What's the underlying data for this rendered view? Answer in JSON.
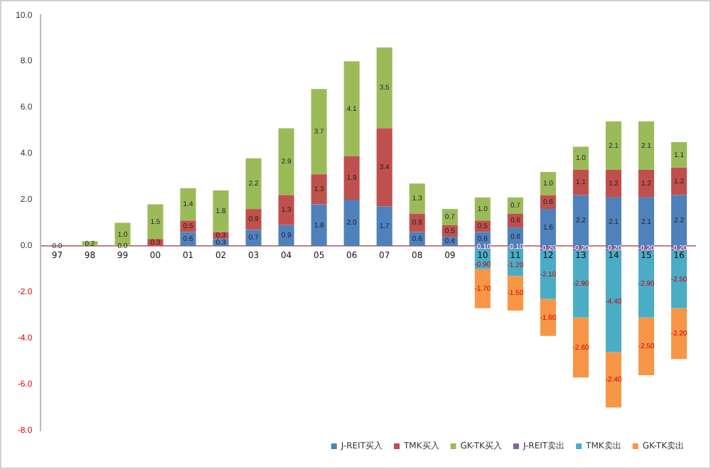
{
  "chart_data": {
    "type": "bar",
    "stacked": true,
    "categories": [
      "97",
      "98",
      "99",
      "00",
      "01",
      "02",
      "03",
      "04",
      "05",
      "06",
      "07",
      "08",
      "09",
      "10",
      "11",
      "12",
      "13",
      "14",
      "15",
      "16"
    ],
    "series": [
      {
        "name": "J-REIT买入",
        "color": "#4f81bd",
        "values": [
          0.0,
          0.0,
          0.0,
          0.0,
          0.6,
          0.3,
          0.7,
          0.9,
          1.8,
          2.0,
          1.7,
          0.6,
          0.4,
          0.6,
          0.8,
          1.6,
          2.2,
          2.1,
          2.1,
          2.2
        ],
        "value_labels": [
          null,
          null,
          "0.0",
          null,
          "0.6",
          "0.3",
          "0.7",
          "0.9",
          "1.8",
          "2.0",
          "1.7",
          "0.6",
          "0.4",
          "0.6",
          "0.8",
          "1.6",
          "2.2",
          "2.1",
          "2.1",
          "2.2"
        ]
      },
      {
        "name": "TMK买入",
        "color": "#c0504d",
        "values": [
          0.0,
          0.0,
          0.0,
          0.3,
          0.5,
          0.3,
          0.9,
          1.3,
          1.3,
          1.9,
          3.4,
          0.8,
          0.5,
          0.5,
          0.6,
          0.6,
          1.1,
          1.2,
          1.2,
          1.2
        ],
        "value_labels": [
          null,
          null,
          null,
          "0.3",
          "0.5",
          "0.3",
          "0.9",
          "1.3",
          "1.3",
          "1.9",
          "3.4",
          "0.8",
          "0.5",
          "0.5",
          "0.6",
          "0.6",
          "1.1",
          "1.2",
          "1.2",
          "1.2"
        ]
      },
      {
        "name": "GK-TK买入",
        "color": "#9bbb59",
        "values": [
          0.0,
          0.2,
          1.0,
          1.5,
          1.4,
          1.8,
          2.2,
          2.9,
          3.7,
          4.1,
          3.5,
          1.3,
          0.7,
          1.0,
          0.7,
          1.0,
          1.0,
          2.1,
          2.1,
          1.1
        ],
        "value_labels": [
          "0.0",
          "0.2",
          "1.0",
          "1.5",
          "1.4",
          "1.8",
          "2.2",
          "2.9",
          "3.7",
          "4.1",
          "3.5",
          "1.3",
          "0.7",
          "1.0",
          "0.7",
          "1.0",
          "1.0",
          "2.1",
          "2.1",
          "1.1"
        ]
      },
      {
        "name": "J-REIT卖出",
        "color": "#8064a2",
        "values": [
          null,
          null,
          null,
          null,
          null,
          null,
          null,
          null,
          null,
          null,
          null,
          null,
          null,
          -0.1,
          -0.1,
          -0.2,
          -0.2,
          -0.2,
          -0.2,
          -0.2
        ],
        "value_labels": [
          null,
          null,
          null,
          null,
          null,
          null,
          null,
          null,
          null,
          null,
          null,
          null,
          null,
          "-0.10",
          "-0.10",
          "-0.20",
          "-0.20",
          "-0.20",
          "-0.20",
          "-0.20"
        ]
      },
      {
        "name": "TMK卖出",
        "color": "#4bacc6",
        "values": [
          null,
          null,
          null,
          null,
          null,
          null,
          null,
          null,
          null,
          null,
          null,
          null,
          null,
          -0.9,
          -1.2,
          -2.1,
          -2.9,
          -4.4,
          -2.9,
          -2.5
        ],
        "value_labels": [
          null,
          null,
          null,
          null,
          null,
          null,
          null,
          null,
          null,
          null,
          null,
          null,
          null,
          "-0.90",
          "-1.20",
          "-2.10",
          "-2.90",
          "-4.40",
          "-2.90",
          "-2.50"
        ]
      },
      {
        "name": "GK-TK卖出",
        "color": "#f79646",
        "values": [
          null,
          null,
          null,
          null,
          null,
          null,
          null,
          null,
          null,
          null,
          null,
          null,
          null,
          -1.7,
          -1.5,
          -1.6,
          -2.6,
          -2.4,
          -2.5,
          -2.2
        ],
        "value_labels": [
          null,
          null,
          null,
          null,
          null,
          null,
          null,
          null,
          null,
          null,
          null,
          null,
          null,
          "-1.70",
          "-1.50",
          "-1.60",
          "-2.60",
          "-2.40",
          "-2.50",
          "-2.20"
        ]
      }
    ],
    "ylim": [
      -8,
      10
    ],
    "yticks": [
      {
        "value": -8,
        "label": "-8.0"
      },
      {
        "value": -6,
        "label": "-6.0"
      },
      {
        "value": -4,
        "label": "-4.0"
      },
      {
        "value": -2,
        "label": "-2.0"
      },
      {
        "value": 0,
        "label": "0.0"
      },
      {
        "value": 2,
        "label": "2.0"
      },
      {
        "value": 4,
        "label": "4.0"
      },
      {
        "value": 6,
        "label": "6.0"
      },
      {
        "value": 8,
        "label": "8.0"
      },
      {
        "value": 10,
        "label": "10.0"
      }
    ],
    "grid": false,
    "legend": "bottom right"
  }
}
